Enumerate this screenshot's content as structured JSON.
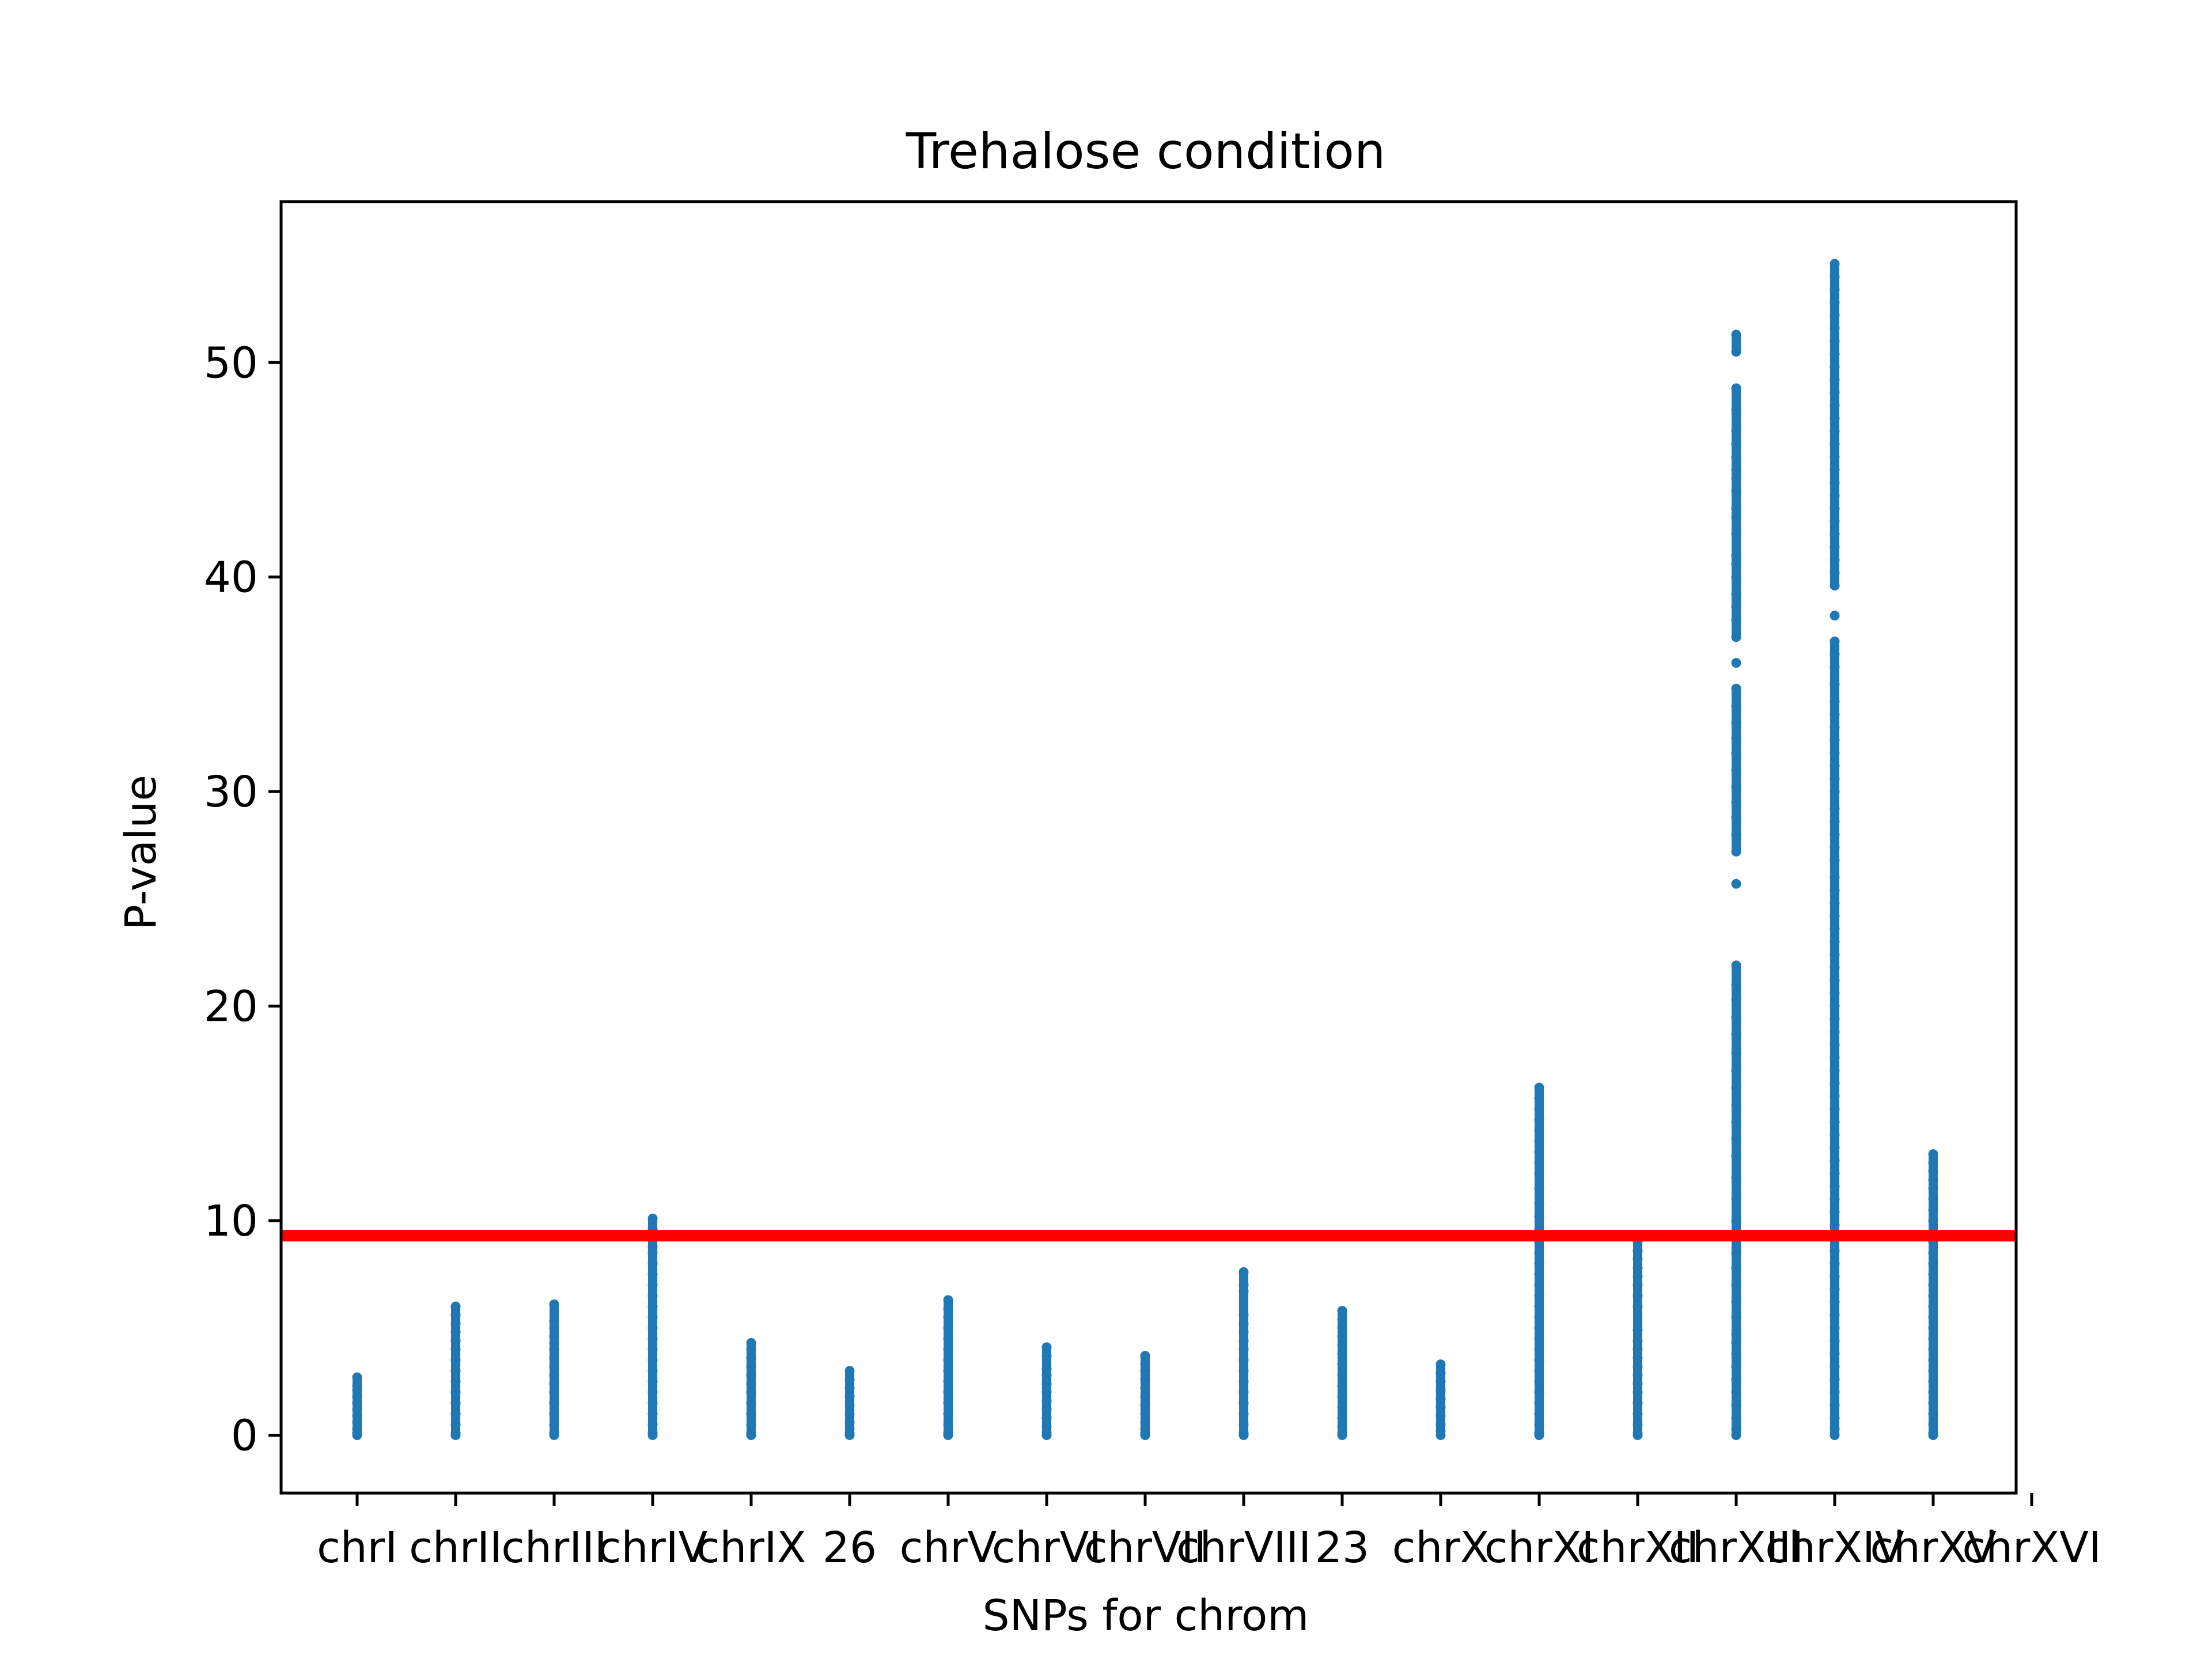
{
  "chart_data": {
    "type": "scatter",
    "title": "Trehalose condition",
    "xlabel": "SNPs for chrom",
    "ylabel": "P-value",
    "ylim": [
      -2.7,
      57.5
    ],
    "yticks": [
      0,
      10,
      20,
      30,
      40,
      50
    ],
    "categories": [
      "chrI",
      "chrII",
      "chrIII",
      "chrIV",
      "chrIX",
      "26",
      "chrV",
      "chrVI",
      "chrVII",
      "chrVIII",
      "23",
      "chrX",
      "chrXI",
      "chrXII",
      "chrXIII",
      "chrXIV",
      "chrXV",
      "chrXVI"
    ],
    "threshold": 9.3,
    "colors": {
      "points": "#1f77b4",
      "threshold": "#ff0000",
      "axes": "#000000"
    },
    "series": [
      {
        "category": "chrI",
        "max": 2.7,
        "points": [
          2.7,
          2.3,
          2.1,
          1.8,
          1.5,
          1.2,
          0.9,
          0.6,
          0.3,
          0.1,
          0.0
        ]
      },
      {
        "category": "chrII",
        "max": 6.0,
        "points": [
          6.0,
          5.6,
          5.2,
          4.8,
          4.4,
          4.0,
          3.5,
          3.0,
          2.5,
          2.0,
          1.5,
          1.0,
          0.5,
          0.1,
          0.0
        ]
      },
      {
        "category": "chrIII",
        "max": 6.1,
        "points": [
          6.1,
          5.3,
          5.0,
          4.6,
          4.3,
          4.0,
          3.6,
          3.2,
          2.8,
          2.4,
          2.0,
          1.5,
          1.0,
          0.5,
          0.1,
          0.0
        ]
      },
      {
        "category": "chrIV",
        "max": 10.1,
        "points": [
          10.1,
          9.6,
          9.2,
          8.8,
          8.5,
          8.0,
          7.5,
          7.0,
          6.5,
          6.0,
          5.5,
          5.0,
          4.5,
          4.0,
          3.5,
          3.0,
          2.5,
          2.0,
          1.5,
          1.0,
          0.5,
          0.1,
          0.0
        ]
      },
      {
        "category": "chrIX",
        "max": 4.3,
        "points": [
          4.3,
          4.0,
          3.6,
          3.2,
          2.8,
          2.4,
          2.0,
          1.5,
          1.0,
          0.5,
          0.1,
          0.0
        ]
      },
      {
        "category": "26",
        "max": 3.0,
        "points": [
          3.0,
          2.6,
          2.2,
          1.8,
          1.4,
          1.0,
          0.6,
          0.3,
          0.1,
          0.0
        ]
      },
      {
        "category": "chrV",
        "max": 6.3,
        "points": [
          6.3,
          5.9,
          5.5,
          5.0,
          4.5,
          4.0,
          3.5,
          3.0,
          2.5,
          2.0,
          1.5,
          1.0,
          0.5,
          0.1,
          0.0
        ]
      },
      {
        "category": "chrVI",
        "max": 4.1,
        "points": [
          4.1,
          3.7,
          3.1,
          2.8,
          2.4,
          2.0,
          1.6,
          1.2,
          0.8,
          0.4,
          0.1,
          0.0
        ]
      },
      {
        "category": "chrVII",
        "max": 3.7,
        "points": [
          3.7,
          3.3,
          3.0,
          2.6,
          2.2,
          1.8,
          1.4,
          1.0,
          0.6,
          0.3,
          0.1,
          0.0
        ]
      },
      {
        "category": "chrVIII",
        "max": 7.6,
        "points": [
          7.6,
          7.0,
          6.7,
          5.6,
          5.2,
          4.8,
          4.4,
          4.0,
          3.5,
          3.0,
          2.5,
          2.0,
          1.5,
          1.0,
          0.5,
          0.1,
          0.0
        ]
      },
      {
        "category": "23",
        "max": 5.8,
        "points": [
          5.8,
          5.4,
          5.0,
          4.6,
          4.2,
          3.8,
          3.3,
          2.8,
          2.3,
          1.8,
          1.3,
          0.8,
          0.4,
          0.1,
          0.0
        ]
      },
      {
        "category": "chrX",
        "max": 3.3,
        "points": [
          3.3,
          2.9,
          2.5,
          2.1,
          1.7,
          1.3,
          0.9,
          0.5,
          0.2,
          0.0
        ]
      },
      {
        "category": "chrXI",
        "max": 16.2,
        "points": [
          16.2,
          15.7,
          15.2,
          14.7,
          14.2,
          13.7,
          13.2,
          12.7,
          12.2,
          11.5,
          10.8,
          10.2,
          9.6,
          9.0,
          8.5,
          8.0,
          7.5,
          7.0,
          6.5,
          6.0,
          5.5,
          5.0,
          4.5,
          4.0,
          3.5,
          3.0,
          2.5,
          2.0,
          1.5,
          1.0,
          0.5,
          0.1,
          0.0
        ]
      },
      {
        "category": "chrXII",
        "max": 9.0,
        "points": [
          9.0,
          8.6,
          8.2,
          7.8,
          7.4,
          7.0,
          6.5,
          6.0,
          4.9,
          4.4,
          4.0,
          3.6,
          3.2,
          2.8,
          2.4,
          2.0,
          1.5,
          1.0,
          0.5,
          0.1,
          0.0
        ]
      },
      {
        "category": "chrXIII",
        "max": 51.3,
        "points": [
          51.3,
          50.5,
          48.8,
          47.8,
          46.8,
          46.2,
          45.6,
          45.0,
          44.6,
          44.0,
          43.2,
          42.8,
          42.0,
          41.0,
          40.6,
          40.0,
          39.2,
          38.6,
          38.0,
          37.2,
          36.0,
          34.8,
          34.0,
          33.2,
          32.5,
          31.8,
          31.0,
          30.2,
          29.5,
          28.8,
          28.0,
          27.2,
          25.7,
          21.9,
          21.0,
          20.3,
          19.5,
          18.7,
          17.8,
          17.0,
          16.2,
          15.4,
          14.6,
          13.8,
          13.0,
          12.0,
          11.0,
          10.0,
          9.2,
          8.5,
          7.8,
          7.0,
          6.2,
          5.5,
          4.7,
          4.3,
          3.8,
          3.2,
          2.6,
          2.0,
          1.4,
          0.8,
          0.3,
          0.0
        ]
      },
      {
        "category": "chrXIV",
        "max": 54.6,
        "points": [
          54.6,
          54.0,
          53.4,
          52.8,
          52.2,
          51.6,
          51.0,
          50.4,
          49.8,
          49.2,
          48.6,
          48.0,
          47.4,
          46.8,
          46.2,
          45.6,
          45.0,
          44.4,
          43.8,
          43.2,
          42.6,
          42.0,
          41.4,
          40.8,
          40.2,
          39.6,
          38.2,
          37.0,
          36.4,
          35.8,
          35.0,
          34.2,
          33.6,
          33.0,
          32.4,
          31.8,
          31.2,
          30.6,
          30.0,
          29.2,
          28.6,
          28.0,
          27.4,
          26.8,
          26.0,
          25.4,
          24.8,
          24.2,
          23.6,
          23.0,
          22.4,
          21.8,
          21.2,
          20.6,
          20.0,
          19.4,
          18.8,
          18.2,
          17.6,
          17.0,
          16.4,
          15.8,
          15.2,
          14.6,
          14.0,
          13.4,
          12.8,
          12.2,
          11.6,
          11.0,
          10.4,
          9.8,
          9.2,
          8.6,
          8.0,
          7.4,
          6.8,
          6.2,
          5.6,
          5.0,
          4.4,
          3.8,
          3.2,
          2.6,
          2.0,
          1.4,
          0.8,
          0.3,
          0.0
        ]
      },
      {
        "category": "chrXV",
        "max": 13.1,
        "points": [
          13.1,
          12.7,
          12.3,
          11.9,
          11.5,
          11.0,
          10.5,
          10.0,
          9.5,
          9.0,
          8.5,
          8.0,
          7.5,
          7.0,
          6.5,
          6.0,
          5.5,
          5.0,
          4.5,
          4.0,
          3.5,
          3.0,
          2.5,
          2.0,
          1.5,
          1.0,
          0.5,
          0.1,
          0.0
        ]
      }
    ]
  }
}
